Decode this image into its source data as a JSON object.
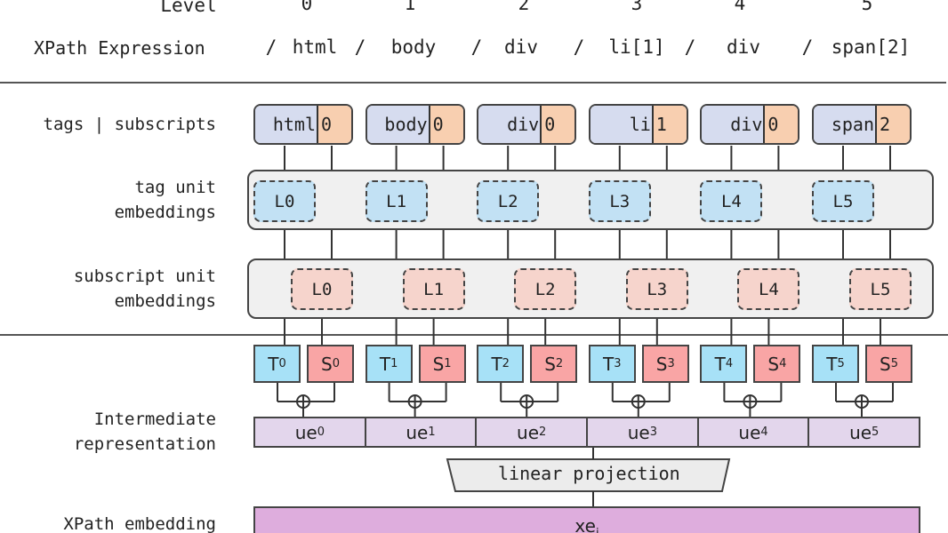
{
  "header": {
    "level_label": "Level",
    "levels": [
      "0",
      "1",
      "2",
      "3",
      "4",
      "5"
    ],
    "xpath_label": "XPath Expression",
    "xpath_tokens": [
      "/",
      "html",
      "/",
      "body",
      "/",
      "div",
      "/",
      "li[1]",
      "/",
      "div",
      "/",
      "span[2]"
    ]
  },
  "labels": {
    "tags_subscripts": "tags | subscripts",
    "tag_unit_1": "tag unit",
    "tag_unit_2": "embeddings",
    "sub_unit_1": "subscript unit",
    "sub_unit_2": "embeddings",
    "inter_1": "Intermediate",
    "inter_2": "representation",
    "xpath_embedding": "XPath embedding"
  },
  "columns": [
    {
      "tag": "html",
      "sub": "0",
      "tag_unit": "L0",
      "sub_unit": "L0",
      "T": "T",
      "S": "S",
      "idx": "0",
      "ue": "ue"
    },
    {
      "tag": "body",
      "sub": "0",
      "tag_unit": "L1",
      "sub_unit": "L1",
      "T": "T",
      "S": "S",
      "idx": "1",
      "ue": "ue"
    },
    {
      "tag": "div",
      "sub": "0",
      "tag_unit": "L2",
      "sub_unit": "L2",
      "T": "T",
      "S": "S",
      "idx": "2",
      "ue": "ue"
    },
    {
      "tag": "li",
      "sub": "1",
      "tag_unit": "L3",
      "sub_unit": "L3",
      "T": "T",
      "S": "S",
      "idx": "3",
      "ue": "ue"
    },
    {
      "tag": "div",
      "sub": "0",
      "tag_unit": "L4",
      "sub_unit": "L4",
      "T": "T",
      "S": "S",
      "idx": "4",
      "ue": "ue"
    },
    {
      "tag": "span",
      "sub": "2",
      "tag_unit": "L5",
      "sub_unit": "L5",
      "T": "T",
      "S": "S",
      "idx": "5",
      "ue": "ue"
    }
  ],
  "projection": "linear projection",
  "xe": {
    "base": "xe",
    "sub": "i"
  },
  "add_symbol": "⊕"
}
